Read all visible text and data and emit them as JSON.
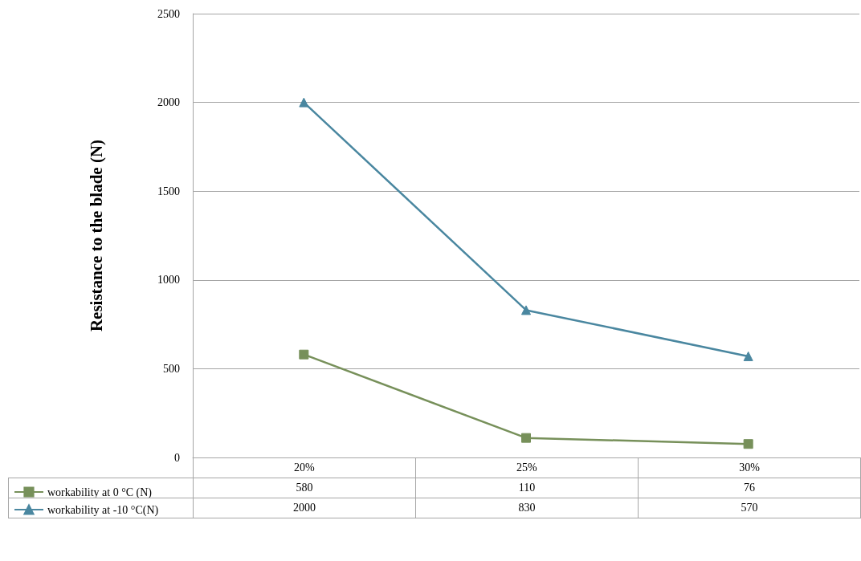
{
  "chart_data": {
    "type": "line",
    "ylabel": "Resistance to the blade (N)",
    "categories": [
      "20%",
      "25%",
      "30%"
    ],
    "series": [
      {
        "name": "workability at 0 °C (N)",
        "color": "#77905a",
        "marker": "square",
        "values": [
          580,
          110,
          76
        ]
      },
      {
        "name": "workability at -10 °C(N)",
        "color": "#4a87a0",
        "marker": "triangle",
        "values": [
          2000,
          830,
          570
        ]
      }
    ],
    "ylim": [
      0,
      2500
    ],
    "yticks": [
      0,
      500,
      1000,
      1500,
      2000,
      2500
    ],
    "grid": "y",
    "legend": "bottom left",
    "data_labels": true,
    "line_style": "solid"
  }
}
